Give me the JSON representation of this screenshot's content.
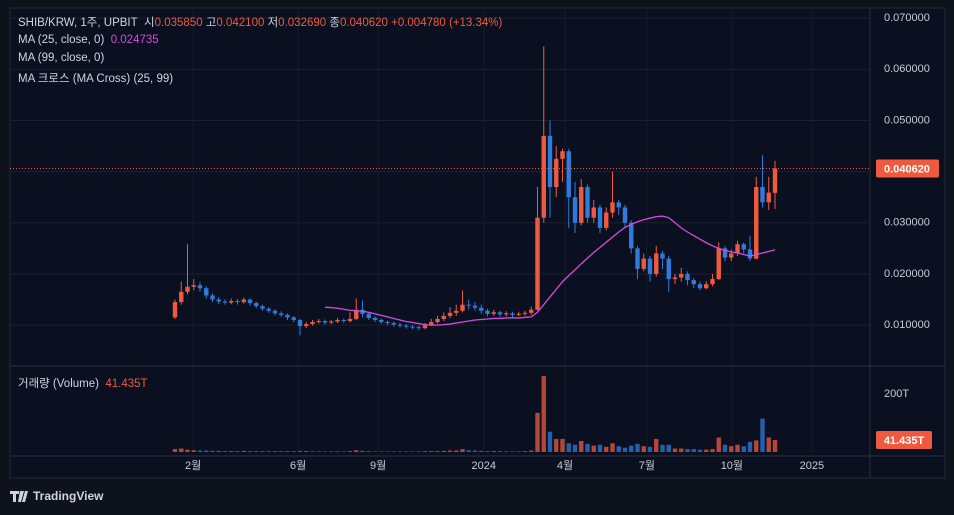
{
  "chart_data": {
    "type": "candlestick",
    "symbol": "SHIB/KRW, 1주, UPBIT",
    "ohlc_legend": [
      {
        "label": "시",
        "value": "0.035850"
      },
      {
        "label": "고",
        "value": "0.042100"
      },
      {
        "label": "저",
        "value": "0.032690"
      },
      {
        "label": "종",
        "value": "0.040620"
      }
    ],
    "change": "+0.004780 (+13.34%)",
    "up_color": "#ef5a3f",
    "down_color": "#2f7bdc",
    "ohlc": {
      "open": [
        0.0115,
        0.0145,
        0.0165,
        0.0175,
        0.0178,
        0.0172,
        0.0158,
        0.015,
        0.0146,
        0.0144,
        0.0147,
        0.0145,
        0.015,
        0.0143,
        0.0137,
        0.0132,
        0.0128,
        0.0123,
        0.012,
        0.0115,
        0.011,
        0.0098,
        0.0102,
        0.0106,
        0.0108,
        0.0105,
        0.0107,
        0.011,
        0.0108,
        0.0112,
        0.013,
        0.0122,
        0.0114,
        0.011,
        0.0106,
        0.0104,
        0.0101,
        0.0099,
        0.0097,
        0.0096,
        0.0094,
        0.01,
        0.0106,
        0.0112,
        0.0118,
        0.0124,
        0.0128,
        0.014,
        0.0138,
        0.0134,
        0.0128,
        0.0122,
        0.0125,
        0.0121,
        0.0123,
        0.012,
        0.0122,
        0.0124,
        0.013,
        0.031,
        0.047,
        0.037,
        0.0425,
        0.044,
        0.035,
        0.03,
        0.037,
        0.031,
        0.033,
        0.029,
        0.032,
        0.034,
        0.033,
        0.03,
        0.025,
        0.021,
        0.023,
        0.02,
        0.024,
        0.023,
        0.019,
        0.0193,
        0.02,
        0.0188,
        0.018,
        0.0172,
        0.018,
        0.019,
        0.025,
        0.0232,
        0.024,
        0.0258,
        0.0248,
        0.023,
        0.037,
        0.034,
        0.03585
      ],
      "high": [
        0.015,
        0.0185,
        0.0258,
        0.019,
        0.0185,
        0.0176,
        0.0162,
        0.0155,
        0.015,
        0.0152,
        0.0151,
        0.0154,
        0.0152,
        0.0146,
        0.014,
        0.0135,
        0.0131,
        0.0127,
        0.0123,
        0.0118,
        0.0112,
        0.0106,
        0.011,
        0.0112,
        0.0111,
        0.011,
        0.0114,
        0.0113,
        0.0125,
        0.0152,
        0.0148,
        0.0125,
        0.0117,
        0.0113,
        0.0109,
        0.0107,
        0.0104,
        0.0102,
        0.01,
        0.0099,
        0.0104,
        0.0112,
        0.0118,
        0.0125,
        0.0135,
        0.014,
        0.0168,
        0.015,
        0.0145,
        0.014,
        0.0132,
        0.013,
        0.0128,
        0.0127,
        0.0126,
        0.0126,
        0.0128,
        0.0136,
        0.037,
        0.0645,
        0.05,
        0.045,
        0.0445,
        0.0445,
        0.038,
        0.0385,
        0.0375,
        0.0345,
        0.0335,
        0.033,
        0.04,
        0.0345,
        0.0335,
        0.0305,
        0.0255,
        0.024,
        0.0235,
        0.0255,
        0.0245,
        0.0235,
        0.02,
        0.0212,
        0.0205,
        0.0192,
        0.0185,
        0.0186,
        0.02,
        0.0262,
        0.0255,
        0.0248,
        0.0265,
        0.0262,
        0.0275,
        0.039,
        0.0432,
        0.039,
        0.0421
      ],
      "low": [
        0.0112,
        0.014,
        0.016,
        0.0168,
        0.0165,
        0.0152,
        0.0145,
        0.0141,
        0.014,
        0.0141,
        0.014,
        0.0142,
        0.0138,
        0.0133,
        0.0128,
        0.0124,
        0.0119,
        0.0116,
        0.011,
        0.0106,
        0.008,
        0.0094,
        0.0099,
        0.0103,
        0.0101,
        0.0102,
        0.0104,
        0.0104,
        0.0105,
        0.011,
        0.0115,
        0.011,
        0.0106,
        0.0102,
        0.01,
        0.0097,
        0.0095,
        0.0093,
        0.0092,
        0.009,
        0.0092,
        0.0098,
        0.0103,
        0.0108,
        0.0114,
        0.0118,
        0.0125,
        0.013,
        0.0128,
        0.0122,
        0.0117,
        0.0118,
        0.0116,
        0.0117,
        0.0115,
        0.0117,
        0.0118,
        0.012,
        0.0128,
        0.03,
        0.031,
        0.035,
        0.038,
        0.029,
        0.028,
        0.0295,
        0.03,
        0.03,
        0.028,
        0.0285,
        0.031,
        0.0315,
        0.029,
        0.024,
        0.019,
        0.0205,
        0.0185,
        0.0195,
        0.021,
        0.0165,
        0.018,
        0.0185,
        0.0178,
        0.0172,
        0.0168,
        0.017,
        0.0176,
        0.0188,
        0.0225,
        0.0225,
        0.0235,
        0.024,
        0.0225,
        0.0228,
        0.033,
        0.0325,
        0.03269
      ],
      "close": [
        0.0145,
        0.0165,
        0.0175,
        0.0178,
        0.0172,
        0.0158,
        0.015,
        0.0146,
        0.0144,
        0.0147,
        0.0145,
        0.015,
        0.0143,
        0.0137,
        0.0132,
        0.0128,
        0.0123,
        0.012,
        0.0115,
        0.011,
        0.0098,
        0.0102,
        0.0106,
        0.0108,
        0.0105,
        0.0107,
        0.011,
        0.0108,
        0.0112,
        0.013,
        0.0122,
        0.0114,
        0.011,
        0.0106,
        0.0104,
        0.0101,
        0.0099,
        0.0097,
        0.0096,
        0.0094,
        0.01,
        0.0106,
        0.0112,
        0.0118,
        0.0124,
        0.0128,
        0.014,
        0.0138,
        0.0134,
        0.0128,
        0.0122,
        0.0125,
        0.0121,
        0.0123,
        0.012,
        0.0122,
        0.0124,
        0.013,
        0.031,
        0.047,
        0.037,
        0.0425,
        0.044,
        0.035,
        0.03,
        0.037,
        0.031,
        0.033,
        0.029,
        0.032,
        0.034,
        0.033,
        0.03,
        0.025,
        0.021,
        0.023,
        0.02,
        0.024,
        0.023,
        0.019,
        0.0193,
        0.02,
        0.0188,
        0.018,
        0.0172,
        0.018,
        0.019,
        0.025,
        0.0232,
        0.024,
        0.0258,
        0.0248,
        0.023,
        0.037,
        0.034,
        0.0359,
        0.04062
      ],
      "last_label": "0.040620"
    },
    "ma": {
      "name": "MA (25, close, 0)",
      "color": "#d54bdc",
      "last_label": "0.024735",
      "values": [
        null,
        null,
        null,
        null,
        null,
        null,
        null,
        null,
        null,
        null,
        null,
        null,
        null,
        null,
        null,
        null,
        null,
        null,
        null,
        null,
        null,
        null,
        null,
        null,
        0.0135,
        0.0134,
        0.0133,
        0.0131,
        0.0129,
        0.0128,
        0.0127,
        0.0125,
        0.0122,
        0.0119,
        0.0116,
        0.0113,
        0.011,
        0.0107,
        0.0105,
        0.0103,
        0.0101,
        0.01,
        0.01,
        0.0101,
        0.0102,
        0.0104,
        0.0106,
        0.0108,
        0.011,
        0.0111,
        0.0112,
        0.0113,
        0.0113,
        0.0114,
        0.0114,
        0.0114,
        0.0115,
        0.0116,
        0.0125,
        0.014,
        0.0155,
        0.017,
        0.0185,
        0.0197,
        0.0208,
        0.022,
        0.0231,
        0.0242,
        0.0252,
        0.0262,
        0.0272,
        0.0282,
        0.0291,
        0.0297,
        0.0302,
        0.0306,
        0.0309,
        0.0312,
        0.0313,
        0.031,
        0.03,
        0.029,
        0.0282,
        0.0275,
        0.0268,
        0.0261,
        0.0255,
        0.025,
        0.0246,
        0.0243,
        0.0241,
        0.0238,
        0.0235,
        0.0238,
        0.0241,
        0.0244,
        0.024735
      ]
    },
    "other_indicators": [
      "MA (99, close, 0)",
      "MA 크로스 (MA Cross) (25, 99)"
    ],
    "volume": {
      "name": "거래량 (Volume)",
      "last_label": "41.435T",
      "values": [
        10,
        12,
        8,
        6,
        5,
        5,
        4,
        4,
        3,
        3,
        3,
        4,
        3,
        3,
        3,
        3,
        3,
        3,
        3,
        3,
        4,
        3,
        2,
        2,
        2,
        2,
        2,
        2,
        3,
        6,
        4,
        3,
        2,
        2,
        2,
        2,
        2,
        2,
        2,
        2,
        3,
        3,
        3,
        4,
        5,
        5,
        10,
        6,
        5,
        4,
        3,
        3,
        3,
        2,
        2,
        2,
        3,
        5,
        135,
        262,
        70,
        45,
        45,
        30,
        25,
        38,
        28,
        22,
        25,
        18,
        30,
        20,
        15,
        22,
        28,
        20,
        18,
        45,
        25,
        25,
        12,
        12,
        10,
        10,
        8,
        8,
        10,
        50,
        25,
        20,
        25,
        20,
        35,
        40,
        115,
        50,
        41.435
      ],
      "vlim": [
        0,
        283
      ],
      "vticks": [
        {
          "value": 200,
          "label": "200T"
        }
      ]
    },
    "ylim": [
      0.0022,
      0.0716
    ],
    "yticks": [
      {
        "value": 0.01,
        "label": "0.010000"
      },
      {
        "value": 0.02,
        "label": "0.020000"
      },
      {
        "value": 0.03,
        "label": "0.030000"
      },
      {
        "value": 0.04,
        "label": "0.040000"
      },
      {
        "value": 0.05,
        "label": "0.050000"
      },
      {
        "value": 0.06,
        "label": "0.060000"
      },
      {
        "value": 0.07,
        "label": "0.070000"
      }
    ],
    "xlim": [
      -26.4,
      111.2
    ],
    "xticks": [
      {
        "value": 2.9,
        "label": "2월"
      },
      {
        "value": 19.7,
        "label": "6월"
      },
      {
        "value": 32.5,
        "label": "9월"
      },
      {
        "value": 49.4,
        "label": "2024"
      },
      {
        "value": 62.4,
        "label": "4월"
      },
      {
        "value": 75.5,
        "label": "7월"
      },
      {
        "value": 89.1,
        "label": "10월"
      },
      {
        "value": 101.9,
        "label": "2025"
      }
    ],
    "grid": true,
    "brand": "TradingView"
  }
}
